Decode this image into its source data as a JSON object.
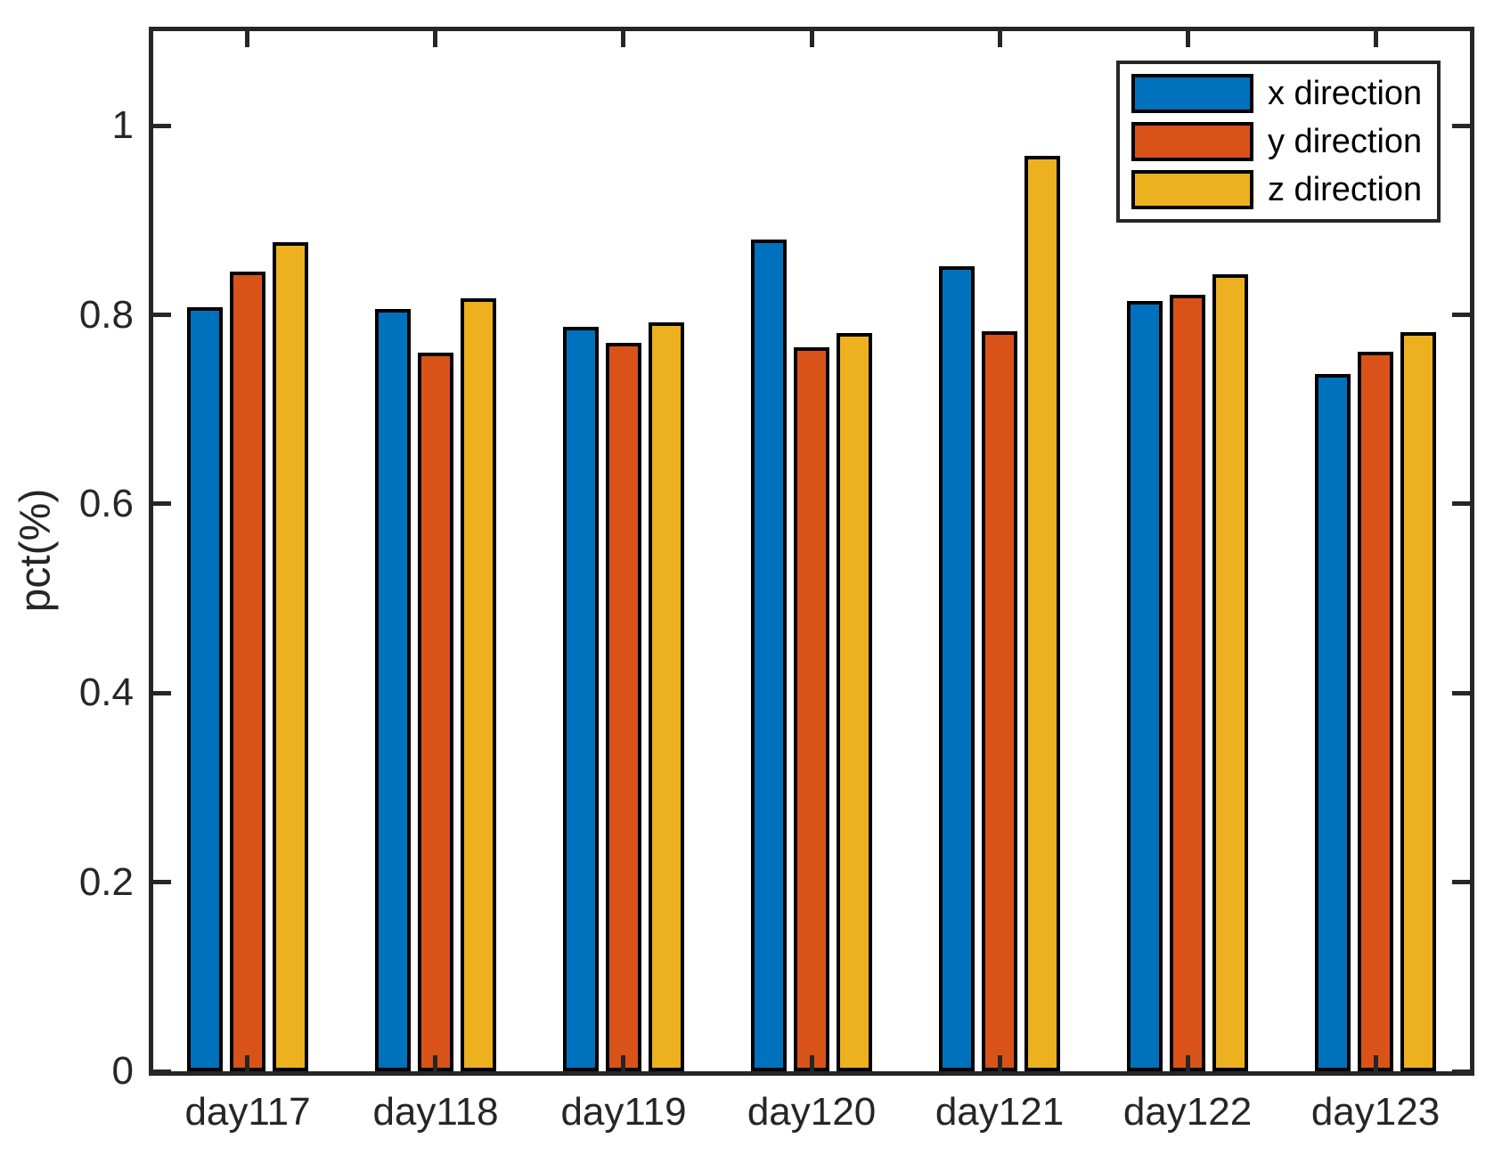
{
  "chart_data": {
    "type": "bar",
    "title": "",
    "xlabel": "",
    "ylabel": "pct(%)",
    "categories": [
      "day117",
      "day118",
      "day119",
      "day120",
      "day121",
      "day122",
      "day123"
    ],
    "series": [
      {
        "name": "x direction",
        "color": "#0072BD",
        "values": [
          0.808,
          0.806,
          0.787,
          0.88,
          0.851,
          0.815,
          0.737
        ]
      },
      {
        "name": "y direction",
        "color": "#D95319",
        "values": [
          0.846,
          0.76,
          0.77,
          0.766,
          0.783,
          0.821,
          0.761
        ]
      },
      {
        "name": "z direction",
        "color": "#EDB120",
        "values": [
          0.877,
          0.817,
          0.792,
          0.781,
          0.968,
          0.843,
          0.782
        ]
      }
    ],
    "ylim": [
      0,
      1.1
    ],
    "yticks": [
      0,
      0.2,
      0.4,
      0.6,
      0.8,
      1
    ],
    "grid": false,
    "legend_position": "top-right",
    "bar_edge_color": "#000000",
    "axis_color": "#262626",
    "background_color": "#ffffff"
  }
}
